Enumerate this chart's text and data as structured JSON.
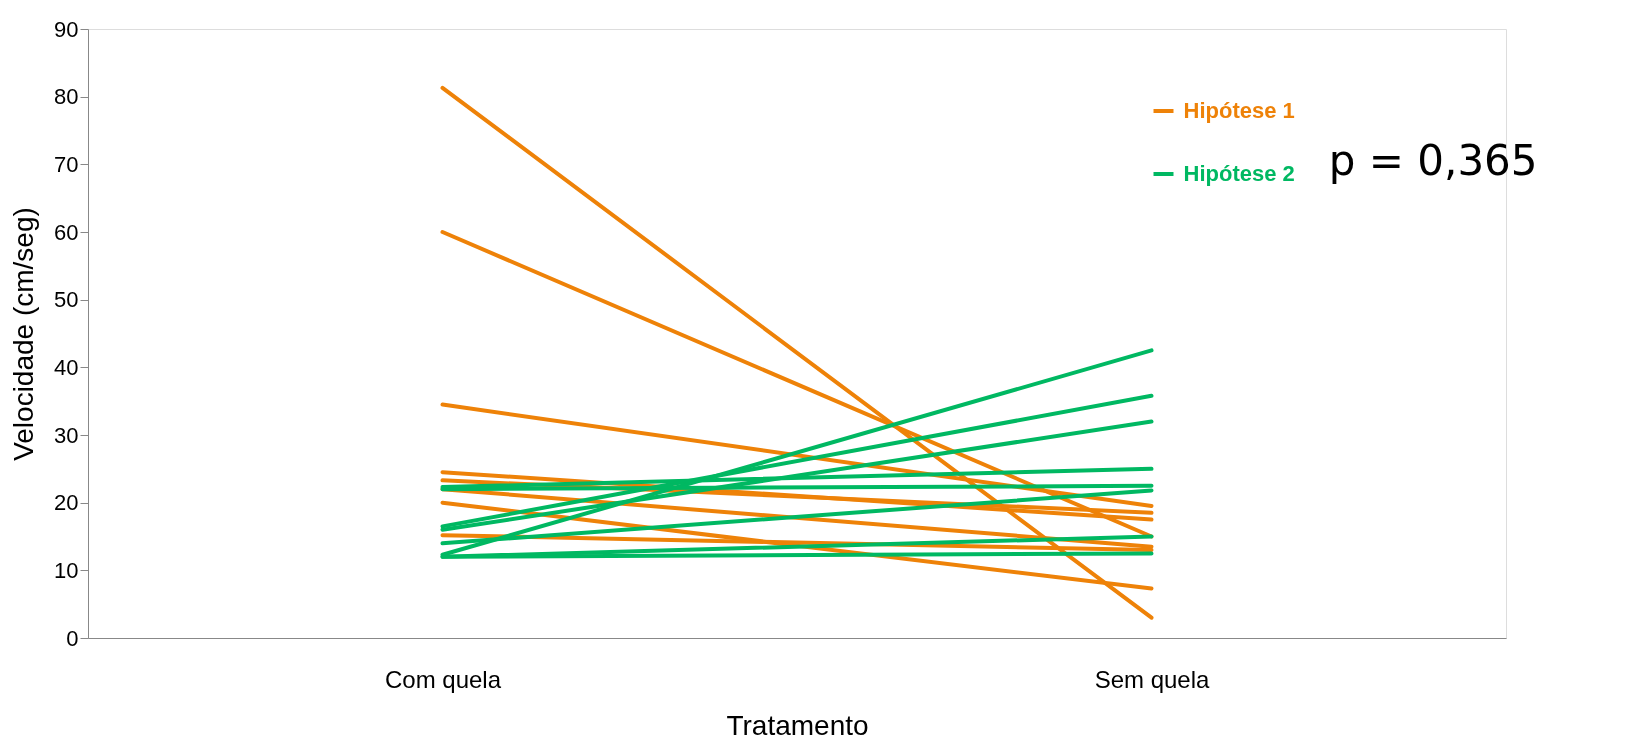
{
  "chart_data": {
    "type": "line",
    "xlabel": "Tratamento",
    "ylabel": "Velocidade (cm/seg)",
    "categories": [
      "Com quela",
      "Sem quela"
    ],
    "series": [
      {
        "name": "Hipótese 1",
        "color": "#ee8208",
        "values": [
          81.3,
          3
        ]
      },
      {
        "color": "#ee8208",
        "values": [
          60,
          15
        ]
      },
      {
        "color": "#ee8208",
        "values": [
          34.5,
          19.5
        ]
      },
      {
        "color": "#ee8208",
        "values": [
          24.5,
          17.5
        ]
      },
      {
        "color": "#ee8208",
        "values": [
          23.3,
          18.5
        ]
      },
      {
        "color": "#ee8208",
        "values": [
          22,
          13.5
        ]
      },
      {
        "color": "#ee8208",
        "values": [
          20,
          7.3
        ]
      },
      {
        "color": "#ee8208",
        "values": [
          15.2,
          13
        ]
      },
      {
        "name": "Hipótese 2",
        "color": "#00b862",
        "values": [
          12.3,
          42.5
        ]
      },
      {
        "color": "#00b862",
        "values": [
          16.5,
          35.8
        ]
      },
      {
        "color": "#00b862",
        "values": [
          16,
          32
        ]
      },
      {
        "color": "#00b862",
        "values": [
          22.3,
          25
        ]
      },
      {
        "color": "#00b862",
        "values": [
          22,
          22.5
        ]
      },
      {
        "color": "#00b862",
        "values": [
          14,
          21.8
        ]
      },
      {
        "color": "#00b862",
        "values": [
          12,
          15
        ]
      },
      {
        "color": "#00b862",
        "values": [
          12,
          12.5
        ]
      }
    ],
    "ylim": [
      0,
      90
    ],
    "yticks": [
      0,
      10,
      20,
      30,
      40,
      50,
      60,
      70,
      80,
      90
    ],
    "grid": false,
    "legend": "top right",
    "marker": "none",
    "line_style": "solid",
    "annotations": [
      "p = 0,365"
    ]
  }
}
